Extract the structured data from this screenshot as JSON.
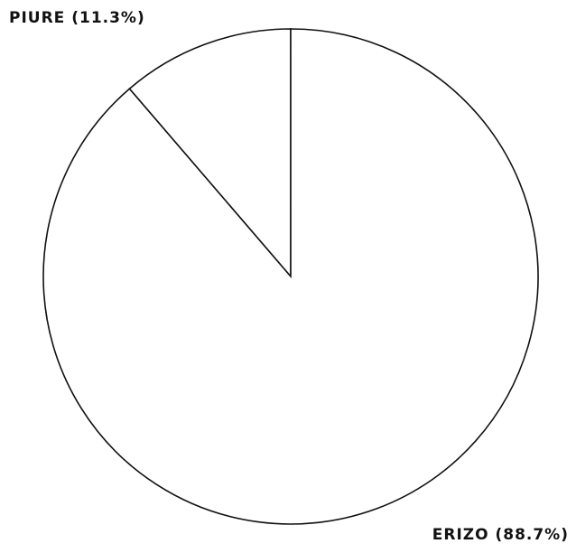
{
  "chart_data": {
    "type": "pie",
    "categories": [
      "PIURE",
      "ERIZO"
    ],
    "values": [
      11.3,
      88.7
    ],
    "value_labels": [
      "(11.3%)",
      "(88.7%)"
    ],
    "color": "#ffffff"
  }
}
